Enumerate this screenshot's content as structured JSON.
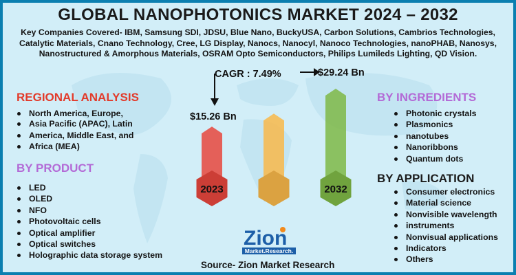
{
  "title": "GLOBAL NANOPHOTONICS MARKET 2024 – 2032",
  "companies_line1": "Key Companies Covered- IBM, Samsung SDI, JDSU, Blue Nano, BuckyUSA, Carbon Solutions, Cambrios Technologies,",
  "companies_line2": "Catalytic Materials, Cnano Technology, Cree, LG Display, Nanocs, Nanocyl, Nanoco Technologies, nanoPHAB, Nanosys,",
  "companies_line3": "Nanostructured & Amorphous Materials, OSRAM Opto Semiconductors, Philips Lumileds Lighting, QD Vision.",
  "regional": {
    "heading": "REGIONAL ANALYSIS",
    "items": [
      "North America, Europe,",
      "Asia Pacific (APAC), Latin",
      "America, Middle East, and",
      "Africa (MEA)"
    ]
  },
  "product": {
    "heading": "BY PRODUCT",
    "items": [
      "LED",
      "OLED",
      "NFO",
      "Photovoltaic cells",
      "Optical amplifier",
      "Optical switches",
      "Holographic data storage system"
    ]
  },
  "ingredients": {
    "heading": "BY INGREDIENTS",
    "items": [
      "Photonic crystals",
      "Plasmonics",
      "nanotubes",
      "Nanoribbons",
      "Quantum dots"
    ]
  },
  "application": {
    "heading": "BY APPLICATION",
    "items": [
      "Consumer electronics",
      "Material science",
      " Nonvisible wavelength",
      "instruments",
      "Nonvisual applications",
      "Indicators",
      "Others"
    ]
  },
  "logo": {
    "word": "Zion",
    "sub": "Market.Research."
  },
  "source": "Source- Zion Market Research",
  "chart_data": {
    "type": "bar",
    "cagr_label": "CAGR : 7.49%",
    "categories": [
      "2023",
      "",
      "2032"
    ],
    "values": [
      15.26,
      null,
      29.24
    ],
    "value_labels": [
      "$15.26 Bn",
      "",
      "$29.24 Bn"
    ],
    "bar_colors": [
      "#e8473d",
      "#f9b84a",
      "#7fb947"
    ],
    "bar_heights_relative": [
      0.62,
      0.75,
      1.0
    ]
  }
}
